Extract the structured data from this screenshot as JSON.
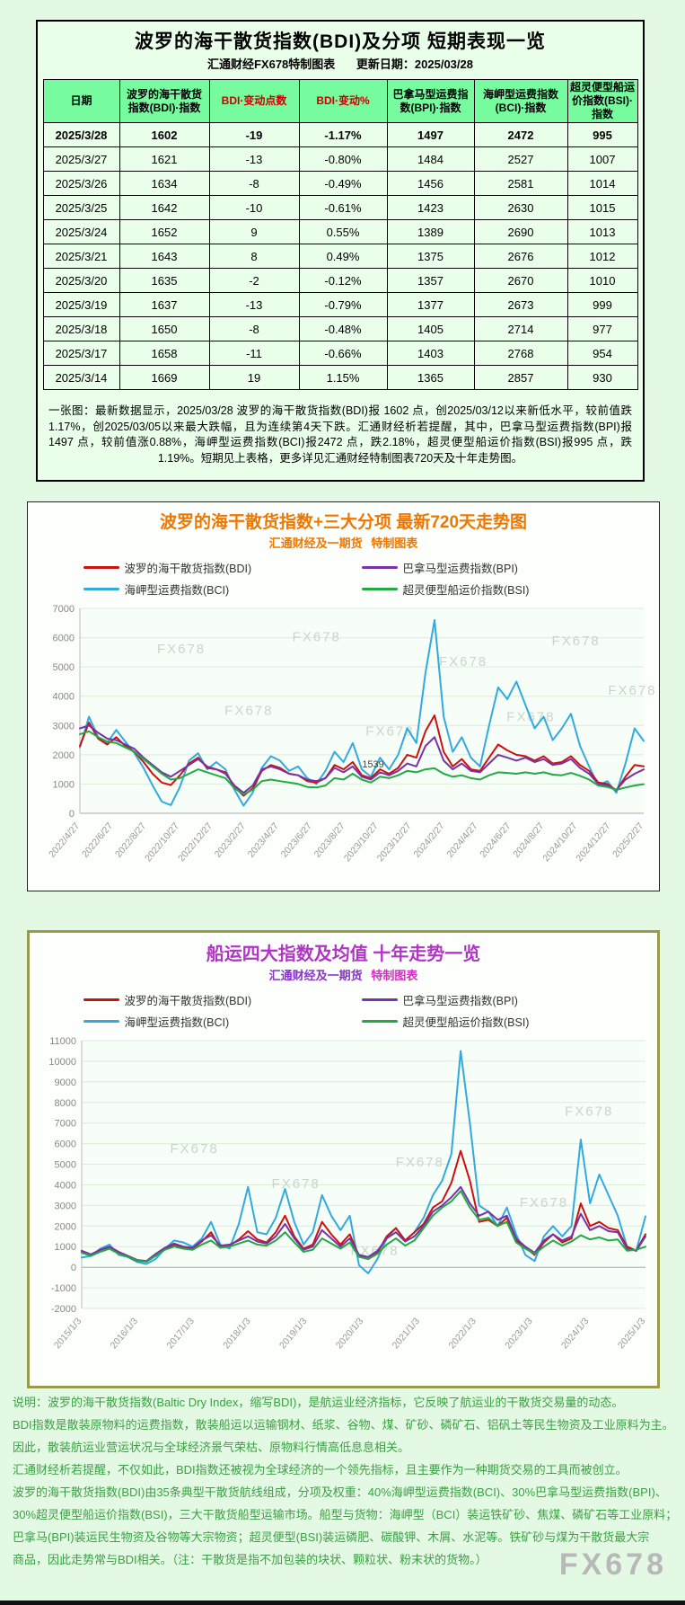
{
  "page": {
    "watermark": "FX678",
    "bg": "#e3f9e3"
  },
  "table_block": {
    "title": "波罗的海干散货指数(BDI)及分项 短期表现一览",
    "source": "汇通财经FX678特制图表",
    "update": "更新日期：2025/03/28",
    "header_bg": "#76fb9e",
    "headers": [
      {
        "label": "日期",
        "color": "#000000"
      },
      {
        "label": "波罗的海干散货指数(BDI)·指数",
        "color": "#000000"
      },
      {
        "label": "BDI·变动点数",
        "color": "#cc0000"
      },
      {
        "label": "BDI·变动%",
        "color": "#cc0000"
      },
      {
        "label": "巴拿马型运费指数(BPI)·指数",
        "color": "#000000"
      },
      {
        "label": "海岬型运费指数(BCI)·指数",
        "color": "#000000"
      },
      {
        "label": "超灵便型船运价指数(BSI)·指数",
        "color": "#000000"
      }
    ],
    "rows": [
      {
        "cells": [
          "2025/3/28",
          "1602",
          "-19",
          "-1.17%",
          "1497",
          "2472",
          "995"
        ],
        "bold": true
      },
      {
        "cells": [
          "2025/3/27",
          "1621",
          "-13",
          "-0.80%",
          "1484",
          "2527",
          "1007"
        ],
        "bold": false
      },
      {
        "cells": [
          "2025/3/26",
          "1634",
          "-8",
          "-0.49%",
          "1456",
          "2581",
          "1014"
        ],
        "bold": false
      },
      {
        "cells": [
          "2025/3/25",
          "1642",
          "-10",
          "-0.61%",
          "1423",
          "2630",
          "1015"
        ],
        "bold": false
      },
      {
        "cells": [
          "2025/3/24",
          "1652",
          "9",
          "0.55%",
          "1389",
          "2690",
          "1013"
        ],
        "bold": false
      },
      {
        "cells": [
          "2025/3/21",
          "1643",
          "8",
          "0.49%",
          "1375",
          "2676",
          "1012"
        ],
        "bold": false
      },
      {
        "cells": [
          "2025/3/20",
          "1635",
          "-2",
          "-0.12%",
          "1357",
          "2670",
          "1010"
        ],
        "bold": false
      },
      {
        "cells": [
          "2025/3/19",
          "1637",
          "-13",
          "-0.79%",
          "1377",
          "2673",
          "999"
        ],
        "bold": false
      },
      {
        "cells": [
          "2025/3/18",
          "1650",
          "-8",
          "-0.48%",
          "1405",
          "2714",
          "977"
        ],
        "bold": false
      },
      {
        "cells": [
          "2025/3/17",
          "1658",
          "-11",
          "-0.66%",
          "1403",
          "2768",
          "954"
        ],
        "bold": false
      },
      {
        "cells": [
          "2025/3/14",
          "1669",
          "19",
          "1.15%",
          "1365",
          "2857",
          "930"
        ],
        "bold": false
      }
    ],
    "note": "一张图：最新数据显示，2025/03/28 波罗的海干散货指数(BDI)报 1602 点，创2025/03/12以来新低水平，较前值跌1.17%，创2025/03/05以来最大跌幅，且为连续第4天下跌。汇通财经析若提醒，其中，巴拿马型运费指数(BPI)报 1497 点，较前值涨0.88%，海岬型运费指数(BCI)报2472 点，跌2.18%，超灵便型船运价指数(BSI)报995 点，跌1.19%。短期见上表格，更多详见汇通财经特制图表720天及十年走势图。"
  },
  "chart_data": [
    {
      "type": "line",
      "title": "波罗的海干散货指数+三大分项 最新720天走势图",
      "subtitle": "汇通财经及一期货",
      "subtitle2": "特制图表",
      "ylim": [
        0,
        7000
      ],
      "ytick_step": 1000,
      "grid": true,
      "legend_position": "top",
      "legend_rows": [
        [
          0,
          1
        ],
        [
          2,
          3
        ]
      ],
      "draw_order": [
        2,
        0,
        1,
        3
      ],
      "annotation": {
        "label": "1539",
        "x_frac": 0.52,
        "y_value": 1560
      },
      "x_labels": [
        "2022/4/27",
        "2022/6/27",
        "2022/8/27",
        "2022/10/27",
        "2022/12/27",
        "2023/2/27",
        "2023/4/27",
        "2023/6/27",
        "2023/8/27",
        "2023/10/27",
        "2023/12/27",
        "2024/2/27",
        "2024/4/27",
        "2024/6/27",
        "2024/8/27",
        "2024/10/27",
        "2024/12/27",
        "2025/2/27"
      ],
      "series": [
        {
          "name": "波罗的海干散货指数(BDI)",
          "color": "#cc1111",
          "values": [
            2300,
            3100,
            2550,
            2350,
            2600,
            2300,
            2100,
            1750,
            1350,
            1050,
            965,
            1300,
            1700,
            1900,
            1550,
            1500,
            1400,
            900,
            600,
            850,
            1450,
            1650,
            1550,
            1350,
            1300,
            1100,
            1050,
            1200,
            1650,
            1500,
            1750,
            1300,
            1200,
            1500,
            1350,
            1550,
            2000,
            1900,
            2800,
            3346,
            2100,
            1600,
            1850,
            1500,
            1450,
            1900,
            2350,
            2150,
            2000,
            1950,
            1800,
            1950,
            1700,
            1750,
            1950,
            1650,
            1450,
            1050,
            1000,
            780,
            1250,
            1650,
            1602
          ]
        },
        {
          "name": "巴拿马型运费指数(BPI)",
          "color": "#7733aa",
          "values": [
            2900,
            3000,
            2750,
            2550,
            2500,
            2350,
            2200,
            1900,
            1650,
            1400,
            1250,
            1450,
            1650,
            1850,
            1600,
            1500,
            1350,
            950,
            700,
            950,
            1500,
            1600,
            1500,
            1350,
            1300,
            1150,
            1100,
            1200,
            1550,
            1400,
            1600,
            1250,
            1150,
            1400,
            1300,
            1450,
            1700,
            1600,
            2300,
            2600,
            1800,
            1500,
            1700,
            1450,
            1400,
            1700,
            2000,
            1900,
            1800,
            1900,
            1750,
            1850,
            1650,
            1700,
            1850,
            1550,
            1350,
            1000,
            950,
            800,
            1150,
            1350,
            1497
          ]
        },
        {
          "name": "海岬型运费指数(BCI)",
          "color": "#33aadd",
          "values": [
            2250,
            3300,
            2600,
            2400,
            2850,
            2450,
            2050,
            1550,
            950,
            400,
            280,
            900,
            1800,
            2050,
            1500,
            1750,
            1500,
            800,
            260,
            700,
            1550,
            1950,
            1800,
            1450,
            1600,
            1200,
            1000,
            1450,
            2100,
            1750,
            2400,
            1500,
            1250,
            1900,
            1500,
            2000,
            2900,
            2400,
            4800,
            6600,
            3300,
            2100,
            2600,
            1900,
            1600,
            3000,
            4300,
            3900,
            4500,
            3700,
            2900,
            3300,
            2500,
            2900,
            3400,
            2300,
            1600,
            950,
            1100,
            700,
            1700,
            2900,
            2472
          ]
        },
        {
          "name": "超灵便型船运价指数(BSI)",
          "color": "#22aa44",
          "values": [
            2700,
            2800,
            2600,
            2450,
            2400,
            2250,
            2100,
            1850,
            1600,
            1350,
            1150,
            1200,
            1350,
            1500,
            1400,
            1300,
            1200,
            850,
            650,
            800,
            1100,
            1150,
            1100,
            1050,
            1000,
            900,
            880,
            950,
            1200,
            1150,
            1350,
            1150,
            1050,
            1250,
            1200,
            1300,
            1450,
            1400,
            1500,
            1539,
            1350,
            1250,
            1300,
            1200,
            1150,
            1300,
            1400,
            1380,
            1350,
            1400,
            1350,
            1400,
            1320,
            1300,
            1380,
            1280,
            1150,
            950,
            900,
            800,
            880,
            950,
            995
          ]
        }
      ]
    },
    {
      "type": "line",
      "title": "船运四大指数及均值 十年走势一览",
      "subtitle": "汇通财经及一期货",
      "subtitle2": "特制图表",
      "ylim": [
        -2000,
        11000
      ],
      "ytick_step": 1000,
      "grid": true,
      "legend_position": "top",
      "legend_rows": [
        [
          0,
          1
        ],
        [
          2,
          3
        ]
      ],
      "draw_order": [
        2,
        0,
        1,
        3
      ],
      "x_labels": [
        "2015/1/3",
        "2016/1/3",
        "2017/1/3",
        "2018/1/3",
        "2019/1/3",
        "2020/1/3",
        "2021/1/3",
        "2022/1/3",
        "2023/1/3",
        "2024/1/3",
        "2025/1/3"
      ],
      "series": [
        {
          "name": "波罗的海干散货指数(BDI)",
          "color": "#cc1111",
          "values": [
            770,
            600,
            800,
            950,
            700,
            500,
            310,
            290,
            600,
            900,
            1100,
            950,
            900,
            1250,
            1700,
            950,
            1050,
            1350,
            1750,
            1350,
            1200,
            1700,
            2500,
            1500,
            900,
            1100,
            2200,
            1600,
            1100,
            1600,
            550,
            400,
            700,
            1500,
            1900,
            1300,
            1700,
            2100,
            2900,
            3200,
            4100,
            5650,
            4200,
            2200,
            2300,
            2000,
            2400,
            1300,
            950,
            600,
            1200,
            1600,
            1200,
            1400,
            3100,
            2000,
            2200,
            1900,
            1800,
            1000,
            800,
            1602
          ]
        },
        {
          "name": "巴拿马型运费指数(BPI)",
          "color": "#7733aa",
          "values": [
            800,
            620,
            850,
            1000,
            750,
            550,
            350,
            300,
            650,
            950,
            1150,
            1000,
            950,
            1300,
            1550,
            1050,
            1100,
            1300,
            1500,
            1250,
            1150,
            1500,
            2100,
            1400,
            850,
            1000,
            1800,
            1400,
            1000,
            1400,
            600,
            500,
            800,
            1400,
            1700,
            1250,
            1500,
            2000,
            2700,
            3000,
            3400,
            3900,
            3100,
            2500,
            2700,
            2300,
            2500,
            1400,
            1000,
            700,
            1300,
            1600,
            1300,
            1500,
            2600,
            1800,
            2000,
            1750,
            1700,
            900,
            800,
            1497
          ]
        },
        {
          "name": "海岬型运费指数(BCI)",
          "color": "#33aadd",
          "values": [
            470,
            550,
            900,
            1100,
            600,
            500,
            250,
            160,
            400,
            900,
            1300,
            1200,
            1000,
            1400,
            2200,
            1100,
            900,
            2100,
            3900,
            1700,
            1600,
            2400,
            3800,
            2200,
            1100,
            1700,
            3500,
            2500,
            1800,
            2500,
            100,
            -300,
            400,
            1400,
            1900,
            1300,
            1700,
            2400,
            3500,
            4200,
            5500,
            10500,
            7000,
            3000,
            2700,
            2000,
            2900,
            1600,
            600,
            300,
            1500,
            2000,
            1500,
            2000,
            6200,
            3100,
            4500,
            3500,
            2500,
            1000,
            800,
            2472
          ]
        },
        {
          "name": "超灵便型船运价指数(BSI)",
          "color": "#22aa44",
          "values": [
            700,
            550,
            750,
            900,
            650,
            500,
            320,
            270,
            550,
            850,
            1000,
            900,
            850,
            1100,
            1300,
            950,
            1000,
            1150,
            1300,
            1100,
            1050,
            1300,
            1700,
            1200,
            750,
            850,
            1400,
            1150,
            900,
            1200,
            500,
            400,
            650,
            1100,
            1400,
            1050,
            1300,
            1900,
            2500,
            2900,
            3200,
            3700,
            2900,
            2300,
            2400,
            2000,
            2200,
            1200,
            900,
            650,
            1000,
            1300,
            1050,
            1250,
            1550,
            1350,
            1450,
            1300,
            1350,
            800,
            850,
            995
          ]
        }
      ]
    }
  ],
  "notes": {
    "lines": [
      "说明：波罗的海干散货指数(Baltic Dry Index，缩写BDI)，是航运业经济指标，它反映了航运业的干散货交易量的动态。",
      "BDI指数是散装原物料的运费指数，散装船运以运输钢材、纸浆、谷物、煤、矿砂、磷矿石、铝矾土等民生物资及工业原料为主。",
      "因此，散装航运业营运状况与全球经济景气荣枯、原物料行情高低息息相关。",
      "汇通财经析若提醒，不仅如此，BDI指数还被视为全球经济的一个领先指标，且主要作为一种期货交易的工具而被创立。",
      "波罗的海干散货指数(BDI)由35条典型干散货航线组成，分项及权重：40%海岬型运费指数(BCI)、30%巴拿马型运费指数(BPI)、",
      "30%超灵便型船运价指数(BSI)，三大干散货船型运输市场。船型与货物：海岬型（BCI）装运铁矿砂、焦煤、磷矿石等工业原料；",
      "巴拿马(BPI)装运民生物资及谷物等大宗物资；超灵便型(BSI)装运磷肥、碳酸钾、木屑、水泥等。铁矿砂与煤为干散货最大宗",
      "商品，因此走势常与BDI相关。（注：干散货是指不加包装的块状、颗粒状、粉末状的货物。）"
    ]
  }
}
